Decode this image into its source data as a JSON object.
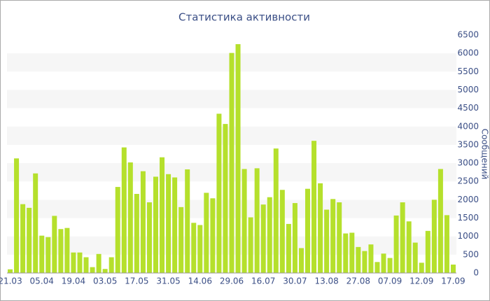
{
  "chart_data": {
    "type": "bar",
    "title": "Статистика активности",
    "y_label": "Сообщений",
    "color": "#b5e02c",
    "grid": true,
    "categories": [
      "21.03",
      null,
      null,
      null,
      null,
      "05.04",
      null,
      null,
      null,
      null,
      "19.04",
      null,
      null,
      null,
      null,
      "03.05",
      null,
      null,
      null,
      null,
      "17.05",
      null,
      null,
      null,
      null,
      "31.05",
      null,
      null,
      null,
      null,
      "14.06",
      null,
      null,
      null,
      null,
      "29.06",
      null,
      null,
      null,
      null,
      "16.07",
      null,
      null,
      null,
      null,
      "30.07",
      null,
      null,
      null,
      null,
      "13.08",
      null,
      null,
      null,
      null,
      "27.08",
      null,
      null,
      null,
      null,
      "07.09",
      null,
      null,
      null,
      null,
      "12.09",
      null,
      null,
      null,
      null,
      "17.09"
    ],
    "values": [
      100,
      3130,
      1880,
      1780,
      2720,
      1020,
      980,
      1560,
      1200,
      1230,
      560,
      560,
      430,
      160,
      520,
      110,
      430,
      2350,
      3430,
      3020,
      2160,
      2780,
      1930,
      2630,
      3160,
      2700,
      2610,
      1800,
      2830,
      1370,
      1310,
      2190,
      2040,
      4350,
      4070,
      6010,
      6250,
      2840,
      1520,
      2860,
      1870,
      2070,
      3400,
      2270,
      1340,
      1910,
      680,
      2300,
      3610,
      2450,
      1730,
      2020,
      1930,
      1080,
      1100,
      710,
      600,
      780,
      300,
      530,
      410,
      1570,
      1930,
      1410,
      830,
      280,
      1150,
      2000,
      2840,
      1580,
      230
    ],
    "ylim": [
      0,
      6500
    ],
    "yticks": [
      0,
      500,
      1000,
      1500,
      2000,
      2500,
      3000,
      3500,
      4000,
      4500,
      5000,
      5500,
      6000,
      6500
    ]
  }
}
